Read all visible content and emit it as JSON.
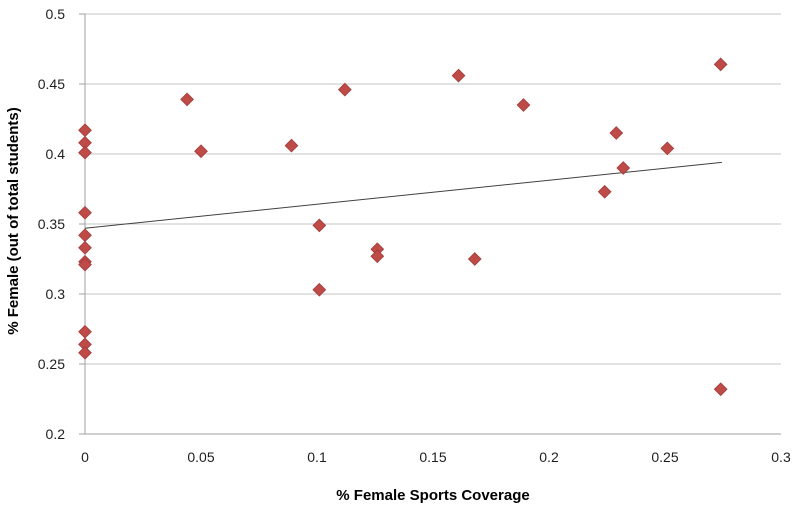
{
  "chart": {
    "colors": {
      "marker_fill": "#BE4B48",
      "marker_edge": "#A03B38",
      "gridline": "#C6C6C6",
      "axis_line": "#A0A0A0",
      "trendline": "#404040",
      "text": "#1F1F1F",
      "background": "#FFFFFF"
    }
  },
  "chart_data": {
    "type": "scatter",
    "title": "",
    "xlabel": "% Female Sports Coverage",
    "ylabel": "% Female (out of total students)",
    "xlim": [
      0,
      0.3
    ],
    "ylim": [
      0.2,
      0.5
    ],
    "x_ticks": [
      0,
      0.05,
      0.1,
      0.15,
      0.2,
      0.25,
      0.3
    ],
    "x_tick_labels": [
      "0",
      "0.05",
      "0.1",
      "0.15",
      "0.2",
      "0.25",
      "0.3"
    ],
    "y_ticks": [
      0.2,
      0.25,
      0.3,
      0.35,
      0.4,
      0.45,
      0.5
    ],
    "y_tick_labels": [
      "0.2",
      "0.25",
      "0.3",
      "0.35",
      "0.4",
      "0.45",
      "0.5"
    ],
    "grid": "horizontal",
    "legend": false,
    "marker": "diamond",
    "points": [
      [
        0,
        0.417
      ],
      [
        0,
        0.408
      ],
      [
        0,
        0.401
      ],
      [
        0,
        0.358
      ],
      [
        0,
        0.342
      ],
      [
        0,
        0.333
      ],
      [
        0,
        0.323
      ],
      [
        0,
        0.321
      ],
      [
        0,
        0.273
      ],
      [
        0,
        0.264
      ],
      [
        0,
        0.258
      ],
      [
        0.044,
        0.439
      ],
      [
        0.05,
        0.402
      ],
      [
        0.089,
        0.406
      ],
      [
        0.101,
        0.349
      ],
      [
        0.101,
        0.303
      ],
      [
        0.112,
        0.446
      ],
      [
        0.126,
        0.332
      ],
      [
        0.126,
        0.327
      ],
      [
        0.161,
        0.456
      ],
      [
        0.168,
        0.325
      ],
      [
        0.189,
        0.435
      ],
      [
        0.224,
        0.373
      ],
      [
        0.229,
        0.415
      ],
      [
        0.232,
        0.39
      ],
      [
        0.251,
        0.404
      ],
      [
        0.274,
        0.464
      ],
      [
        0.274,
        0.232
      ]
    ],
    "trendline": {
      "x1": 0,
      "y1": 0.347,
      "x2": 0.2745,
      "y2": 0.394
    }
  }
}
